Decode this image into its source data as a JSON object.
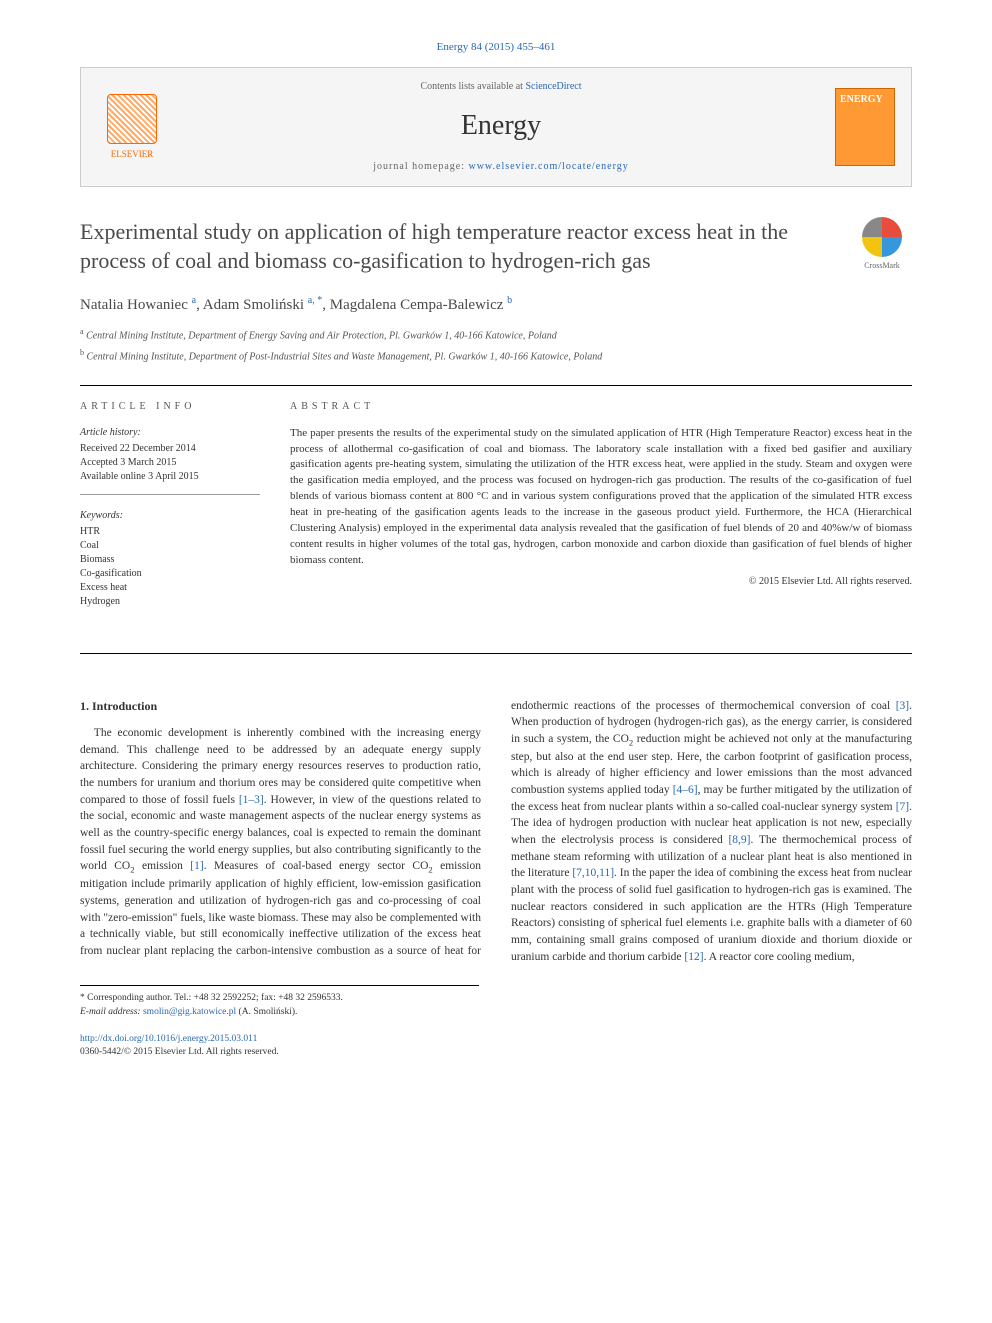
{
  "citation": "Energy 84 (2015) 455–461",
  "masthead": {
    "contents_prefix": "Contents lists available at ",
    "contents_link": "ScienceDirect",
    "journal": "Energy",
    "homepage_prefix": "journal homepage: ",
    "homepage_link": "www.elsevier.com/locate/energy",
    "publisher_logo": "ELSEVIER",
    "cover_label": "ENERGY"
  },
  "crossmark_label": "CrossMark",
  "title": "Experimental study on application of high temperature reactor excess heat in the process of coal and biomass co-gasification to hydrogen-rich gas",
  "authors": {
    "a1_name": "Natalia Howaniec",
    "a1_sup": "a",
    "a2_name": "Adam Smoliński",
    "a2_sup": "a, *",
    "a3_name": "Magdalena Cempa-Balewicz",
    "a3_sup": "b"
  },
  "affiliations": {
    "a": "Central Mining Institute, Department of Energy Saving and Air Protection, Pl. Gwarków 1, 40-166 Katowice, Poland",
    "b": "Central Mining Institute, Department of Post-Industrial Sites and Waste Management, Pl. Gwarków 1, 40-166 Katowice, Poland"
  },
  "article_info": {
    "head": "ARTICLE INFO",
    "history_head": "Article history:",
    "received": "Received 22 December 2014",
    "accepted": "Accepted 3 March 2015",
    "online": "Available online 3 April 2015",
    "keywords_head": "Keywords:",
    "kw1": "HTR",
    "kw2": "Coal",
    "kw3": "Biomass",
    "kw4": "Co-gasification",
    "kw5": "Excess heat",
    "kw6": "Hydrogen"
  },
  "abstract": {
    "head": "ABSTRACT",
    "text": "The paper presents the results of the experimental study on the simulated application of HTR (High Temperature Reactor) excess heat in the process of allothermal co-gasification of coal and biomass. The laboratory scale installation with a fixed bed gasifier and auxiliary gasification agents pre-heating system, simulating the utilization of the HTR excess heat, were applied in the study. Steam and oxygen were the gasification media employed, and the process was focused on hydrogen-rich gas production. The results of the co-gasification of fuel blends of various biomass content at 800 °C and in various system configurations proved that the application of the simulated HTR excess heat in pre-heating of the gasification agents leads to the increase in the gaseous product yield. Furthermore, the HCA (Hierarchical Clustering Analysis) employed in the experimental data analysis revealed that the gasification of fuel blends of 20 and 40%w/w of biomass content results in higher volumes of the total gas, hydrogen, carbon monoxide and carbon dioxide than gasification of fuel blends of higher biomass content.",
    "copyright": "© 2015 Elsevier Ltd. All rights reserved."
  },
  "body": {
    "heading": "1. Introduction",
    "p1a": "The economic development is inherently combined with the increasing energy demand. This challenge need to be addressed by an adequate energy supply architecture. Considering the primary energy resources reserves to production ratio, the numbers for uranium and thorium ores may be considered quite competitive when compared to those of fossil fuels ",
    "ref1": "[1–3]",
    "p1b": ". However, in view of the questions related to the social, economic and waste management aspects of the nuclear energy systems as well as the country-specific energy balances, coal is expected to remain the dominant fossil fuel securing the world energy supplies, but also contributing significantly to the world CO",
    "p1c": " emission ",
    "ref2": "[1]",
    "p1d": ". Measures of coal-based energy sector CO",
    "p1e": " emission mitigation include primarily application of highly efficient, low-emission gasification systems, generation and utilization of hydrogen-rich gas and co-processing of coal with \"zero-emission\" fuels, like waste biomass. These may also be complemented with a technically viable, but still economically ineffective utilization of the excess heat from nuclear plant ",
    "p2a": "replacing the carbon-intensive combustion as a source of heat for endothermic reactions of the processes of thermochemical conversion of coal ",
    "ref3": "[3]",
    "p2b": ". When production of hydrogen (hydrogen-rich gas), as the energy carrier, is considered in such a system, the CO",
    "p2c": " reduction might be achieved not only at the manufacturing step, but also at the end user step. Here, the carbon footprint of gasification process, which is already of higher efficiency and lower emissions than the most advanced combustion systems applied today ",
    "ref4": "[4–6]",
    "p2d": ", may be further mitigated by the utilization of the excess heat from nuclear plants within a so-called coal-nuclear synergy system ",
    "ref5": "[7]",
    "p2e": ". The idea of hydrogen production with nuclear heat application is not new, especially when the electrolysis process is considered ",
    "ref6": "[8,9]",
    "p2f": ". The thermochemical process of methane steam reforming with utilization of a nuclear plant heat is also mentioned in the literature ",
    "ref7": "[7,10,11]",
    "p2g": ". In the paper the idea of combining the excess heat from nuclear plant with the process of solid fuel gasification to hydrogen-rich gas is examined. The nuclear reactors considered in such application are the HTRs (High Temperature Reactors) consisting of spherical fuel elements i.e. graphite balls with a diameter of 60 mm, containing small grains composed of uranium dioxide and thorium dioxide or uranium carbide and thorium carbide ",
    "ref8": "[12]",
    "p2h": ". A reactor core cooling medium,"
  },
  "footnotes": {
    "corr": "* Corresponding author. Tel.: +48 32 2592252; fax: +48 32 2596533.",
    "email_label": "E-mail address: ",
    "email": "smolin@gig.katowice.pl",
    "email_suffix": " (A. Smoliński)."
  },
  "footer": {
    "doi": "http://dx.doi.org/10.1016/j.energy.2015.03.011",
    "issn": "0360-5442/© 2015 Elsevier Ltd. All rights reserved."
  },
  "colors": {
    "link": "#2968b0",
    "text": "#333333",
    "elsevier": "#ff6600"
  }
}
